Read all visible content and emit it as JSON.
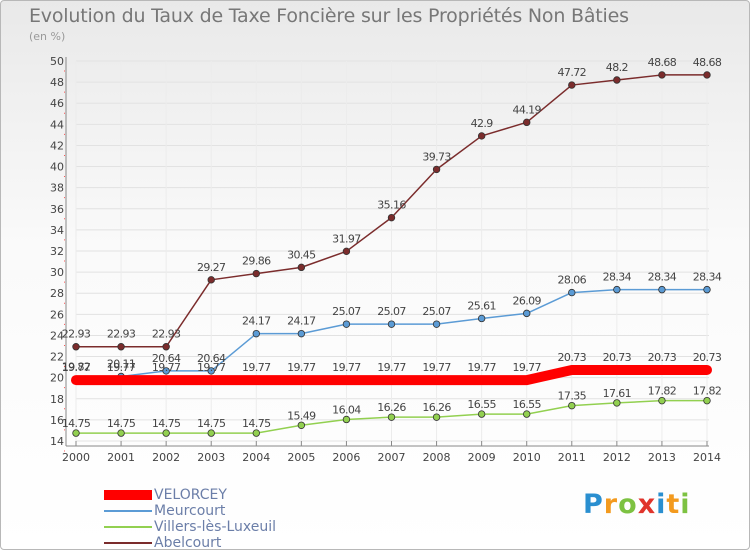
{
  "title": "Evolution du Taux de Taxe Foncière sur les Propriétés Non Bâties",
  "unit_label": "(en %)",
  "logo": {
    "text": "Proxiti",
    "colors": [
      "#2a8fd0",
      "#f39a1e",
      "#7dc242",
      "#e0342b",
      "#2a8fd0",
      "#f39a1e",
      "#7dc242"
    ]
  },
  "chart_data": {
    "type": "line",
    "title": "Evolution du Taux de Taxe Foncière sur les Propriétés Non Bâties",
    "ylabel": "(en %)",
    "xlabel": "",
    "x": [
      "2000",
      "2001",
      "2002",
      "2003",
      "2004",
      "2005",
      "2006",
      "2007",
      "2008",
      "2009",
      "2010",
      "2011",
      "2012",
      "2013",
      "2014"
    ],
    "ylim": [
      14,
      50
    ],
    "yticks": [
      14,
      16,
      18,
      20,
      22,
      24,
      26,
      28,
      30,
      32,
      34,
      36,
      38,
      40,
      42,
      44,
      46,
      48,
      50
    ],
    "grid": "horizontal",
    "legend_position": "bottom-left",
    "series": [
      {
        "name": "VELORCEY",
        "color": "#ff0000",
        "values": [
          19.77,
          19.77,
          19.77,
          19.77,
          19.77,
          19.77,
          19.77,
          19.77,
          19.77,
          19.77,
          19.77,
          20.73,
          20.73,
          20.73,
          20.73
        ],
        "labels": [
          "19.77",
          "19.77",
          "19.77",
          "19.77",
          "19.77",
          "19.77",
          "19.77",
          "19.77",
          "19.77",
          "19.77",
          "19.77",
          "20.73",
          "20.73",
          "20.73",
          "20.73"
        ]
      },
      {
        "name": "Meurcourt",
        "color": "#5b9bd5",
        "values": [
          19.82,
          20.11,
          20.64,
          20.64,
          24.17,
          24.17,
          25.07,
          25.07,
          25.07,
          25.61,
          26.09,
          28.06,
          28.34,
          28.34,
          28.34
        ],
        "labels": [
          "19.82",
          "20.11",
          "20.64",
          "20.64",
          "24.17",
          "24.17",
          "25.07",
          "25.07",
          "25.07",
          "25.61",
          "26.09",
          "28.06",
          "28.34",
          "28.34",
          "28.34"
        ]
      },
      {
        "name": "Villers-lès-Luxeuil",
        "color": "#92d050",
        "values": [
          14.75,
          14.75,
          14.75,
          14.75,
          14.75,
          15.49,
          16.04,
          16.26,
          16.26,
          16.55,
          16.55,
          17.35,
          17.61,
          17.82,
          17.82
        ],
        "labels": [
          "14.75",
          "14.75",
          "14.75",
          "14.75",
          "14.75",
          "15.49",
          "16.04",
          "16.26",
          "16.26",
          "16.55",
          "16.55",
          "17.35",
          "17.61",
          "17.82",
          "17.82"
        ]
      },
      {
        "name": "Abelcourt",
        "color": "#7b2c2c",
        "values": [
          22.93,
          22.93,
          22.93,
          29.27,
          29.86,
          30.45,
          31.97,
          35.16,
          39.73,
          42.9,
          44.19,
          47.72,
          48.2,
          48.68,
          48.68
        ],
        "labels": [
          "22.93",
          "22.93",
          "22.93",
          "29.27",
          "29.86",
          "30.45",
          "31.97",
          "35.16",
          "39.73",
          "42.9",
          "44.19",
          "47.72",
          "48.2",
          "48.68",
          "48.68"
        ]
      }
    ]
  }
}
